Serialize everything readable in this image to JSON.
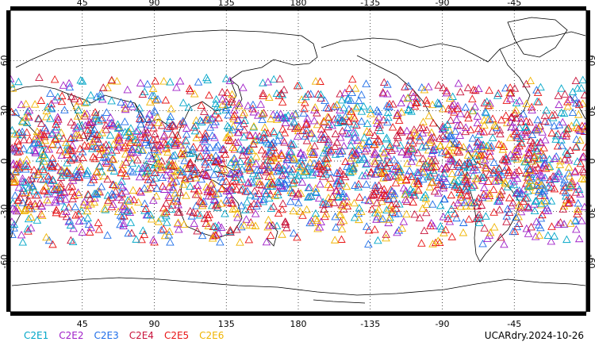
{
  "map": {
    "lon_ticks": [
      "45",
      "90",
      "135",
      "180",
      "-135",
      "-90",
      "-45"
    ],
    "lat_ticks": [
      "60",
      "30",
      "0",
      "-30",
      "-60"
    ],
    "lon_range": [
      0,
      360
    ],
    "lat_range": [
      -90,
      90
    ],
    "coastline_color": "#000000",
    "grid": "dotted",
    "marker": "triangle-outline"
  },
  "legend": {
    "items": [
      {
        "label": "C2E1",
        "color": "#00a6c8"
      },
      {
        "label": "C2E2",
        "color": "#a020c8"
      },
      {
        "label": "C2E3",
        "color": "#1e6ee8"
      },
      {
        "label": "C2E4",
        "color": "#c8143c"
      },
      {
        "label": "C2E5",
        "color": "#e81414"
      },
      {
        "label": "C2E6",
        "color": "#f0b400"
      }
    ]
  },
  "stamp": "UCARdry.2024-10-26"
}
